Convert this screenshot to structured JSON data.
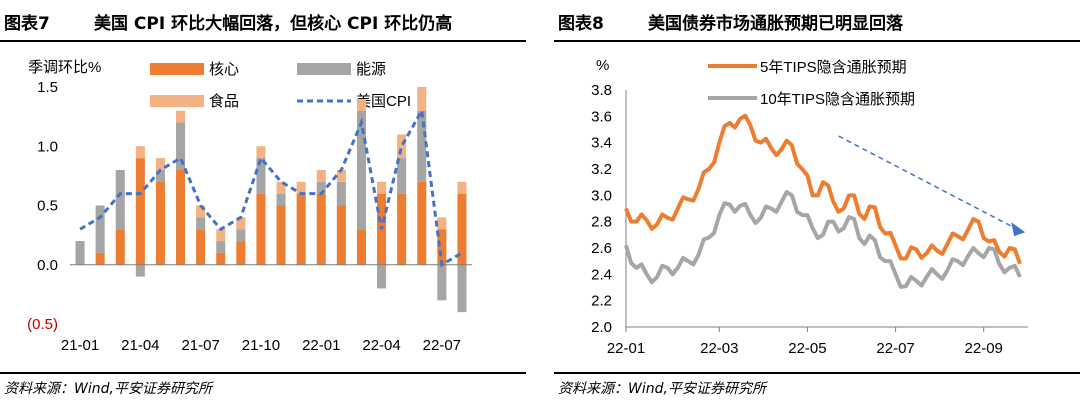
{
  "left": {
    "title_num": "图表7",
    "title_text": "美国 CPI 环比大幅回落，但核心 CPI 环比仍高",
    "source": "资料来源：Wind,平安证券研究所"
  },
  "right": {
    "title_num": "图表8",
    "title_text": "美国债券市场通胀预期已明显回落",
    "source": "资料来源：Wind,平安证券研究所"
  },
  "colors": {
    "core": "#ED7D31",
    "energy": "#A5A5A5",
    "food": "#F4B183",
    "cpi": "#4472C4",
    "gray": "#A6A6A6",
    "axis": "#7F7F7F"
  },
  "chart_data": [
    {
      "type": "bar",
      "stacked": true,
      "title": "美国 CPI 环比大幅回落，但核心 CPI 环比仍高",
      "ylabel": "季调环比%",
      "ylim": [
        -0.5,
        1.5
      ],
      "yticks": [
        "(0.5)",
        "0.0",
        "0.5",
        "1.0",
        "1.5"
      ],
      "xtick_labels": [
        "21-01",
        "21-04",
        "21-07",
        "21-10",
        "22-01",
        "22-04",
        "22-07"
      ],
      "categories": [
        "21-01",
        "21-02",
        "21-03",
        "21-04",
        "21-05",
        "21-06",
        "21-07",
        "21-08",
        "21-09",
        "21-10",
        "21-11",
        "21-12",
        "22-01",
        "22-02",
        "22-03",
        "22-04",
        "22-05",
        "22-06",
        "22-07",
        "22-08"
      ],
      "series": [
        {
          "name": "核心",
          "key": "core",
          "values": [
            0.0,
            0.1,
            0.3,
            0.9,
            0.7,
            0.8,
            0.3,
            0.1,
            0.2,
            0.6,
            0.5,
            0.6,
            0.6,
            0.5,
            0.3,
            0.6,
            0.6,
            0.7,
            0.3,
            0.6
          ]
        },
        {
          "name": "能源",
          "key": "energy",
          "values": [
            0.2,
            0.4,
            0.5,
            -0.1,
            0.1,
            0.4,
            0.1,
            0.1,
            0.1,
            0.3,
            0.1,
            0.0,
            0.1,
            0.2,
            1.0,
            -0.2,
            0.3,
            0.6,
            -0.3,
            -0.4
          ]
        },
        {
          "name": "食品",
          "key": "food",
          "values": [
            0.0,
            0.0,
            0.0,
            0.1,
            0.1,
            0.1,
            0.1,
            0.1,
            0.1,
            0.1,
            0.1,
            0.1,
            0.1,
            0.1,
            0.1,
            0.1,
            0.2,
            0.2,
            0.1,
            0.1
          ]
        },
        {
          "name": "美国CPI",
          "key": "cpi",
          "type": "line",
          "values": [
            0.3,
            0.4,
            0.6,
            0.6,
            0.8,
            0.9,
            0.5,
            0.3,
            0.4,
            0.9,
            0.7,
            0.6,
            0.6,
            0.8,
            1.2,
            0.3,
            1.0,
            1.3,
            0.0,
            0.1
          ]
        }
      ]
    },
    {
      "type": "line",
      "title": "美国债券市场通胀预期已明显回落",
      "ylabel": "%",
      "ylim": [
        2.0,
        3.8
      ],
      "yticks": [
        "2.0",
        "2.2",
        "2.4",
        "2.6",
        "2.8",
        "3.0",
        "3.2",
        "3.4",
        "3.6",
        "3.8"
      ],
      "xtick_labels": [
        "22-01",
        "22-03",
        "22-05",
        "22-07",
        "22-09"
      ],
      "x_range_weeks": [
        0,
        38
      ],
      "x_tick_weeks": [
        0,
        9,
        17.5,
        26,
        34.5
      ],
      "trend_arrow": {
        "from": [
          20.5,
          3.45
        ],
        "to": [
          38.5,
          2.72
        ]
      },
      "series": [
        {
          "name": "5年TIPS隐含通胀预期",
          "key": "core",
          "values": [
            2.9,
            2.8,
            2.81,
            2.78,
            2.83,
            2.9,
            2.97,
            3.05,
            3.2,
            3.4,
            3.55,
            3.58,
            3.53,
            3.4,
            3.36,
            3.35,
            3.38,
            3.2,
            3.0,
            3.1,
            2.95,
            2.9,
            3.0,
            2.82,
            2.91,
            2.71,
            2.62,
            2.52,
            2.59,
            2.56,
            2.58,
            2.63,
            2.69,
            2.74,
            2.8,
            2.65,
            2.57,
            2.6,
            2.48
          ]
        },
        {
          "name": "10年TIPS隐含通胀预期",
          "key": "gray",
          "values": [
            2.62,
            2.45,
            2.4,
            2.38,
            2.45,
            2.45,
            2.5,
            2.55,
            2.68,
            2.85,
            2.93,
            2.92,
            2.85,
            2.83,
            2.9,
            2.95,
            3.0,
            2.85,
            2.75,
            2.7,
            2.8,
            2.75,
            2.82,
            2.63,
            2.66,
            2.5,
            2.4,
            2.31,
            2.35,
            2.38,
            2.4,
            2.43,
            2.5,
            2.54,
            2.56,
            2.6,
            2.48,
            2.45,
            2.38
          ]
        }
      ]
    }
  ]
}
